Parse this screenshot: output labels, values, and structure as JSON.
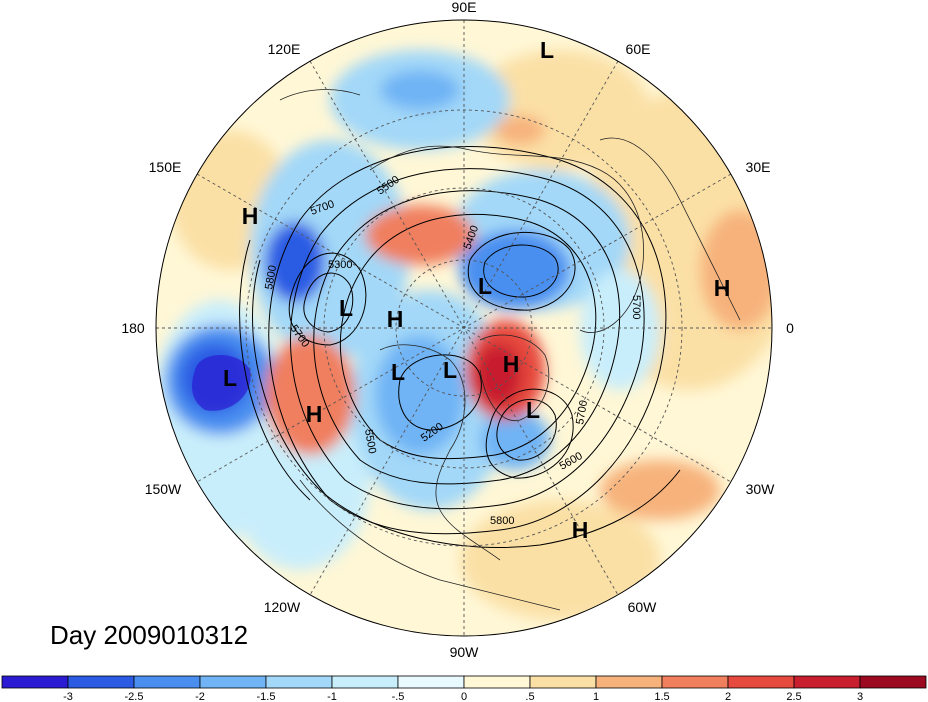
{
  "title": "Day 2009010312",
  "longitude_labels": [
    "90E",
    "60E",
    "30E",
    "0",
    "30W",
    "60W",
    "90W",
    "120W",
    "150W",
    "180",
    "150E",
    "120E"
  ],
  "pressure_centers": [
    {
      "type": "L",
      "lon_lat": "north of 60E"
    },
    {
      "type": "H",
      "region": "western Pacific"
    },
    {
      "type": "L",
      "region": "Kamchatka"
    },
    {
      "type": "L",
      "region": "Siberia"
    },
    {
      "type": "H",
      "region": "East Siberian Sea"
    },
    {
      "type": "L",
      "region": "Kara Sea"
    },
    {
      "type": "H",
      "region": "Europe"
    },
    {
      "type": "L",
      "region": "North Pacific"
    },
    {
      "type": "H",
      "region": "Gulf of Alaska"
    },
    {
      "type": "L",
      "region": "Canada"
    },
    {
      "type": "L",
      "region": "Hudson Bay"
    },
    {
      "type": "H",
      "region": "Greenland"
    },
    {
      "type": "L",
      "region": "Labrador Sea"
    },
    {
      "type": "H",
      "region": "Azores"
    }
  ],
  "contour_labels": [
    "5500",
    "5700",
    "5400",
    "5800",
    "5300",
    "5700",
    "5700",
    "5500",
    "5200",
    "5700",
    "5600",
    "5800"
  ],
  "colorbar": {
    "tick_labels": [
      "-3",
      "-2.5",
      "-2",
      "-1.5",
      "-1",
      "-.5",
      "0",
      ".5",
      "1",
      "1.5",
      "2",
      "2.5",
      "3"
    ],
    "colors": [
      "#2b1bd2",
      "#2c5be3",
      "#4a8ff0",
      "#70b4f5",
      "#a3d8f8",
      "#c9eefb",
      "#e9faff",
      "#fff7d6",
      "#fbe0a6",
      "#f7b27c",
      "#f07f5e",
      "#e64a3e",
      "#c81e2e",
      "#9b0a20"
    ]
  },
  "chart_data": {
    "type": "heatmap",
    "projection": "north polar stereographic",
    "colorbar_ticks": [
      -3,
      -2.5,
      -2,
      -1.5,
      -1,
      -0.5,
      0,
      0.5,
      1,
      1.5,
      2,
      2.5,
      3
    ],
    "contour_values": [
      5200,
      5300,
      5400,
      5500,
      5600,
      5700,
      5800
    ]
  }
}
